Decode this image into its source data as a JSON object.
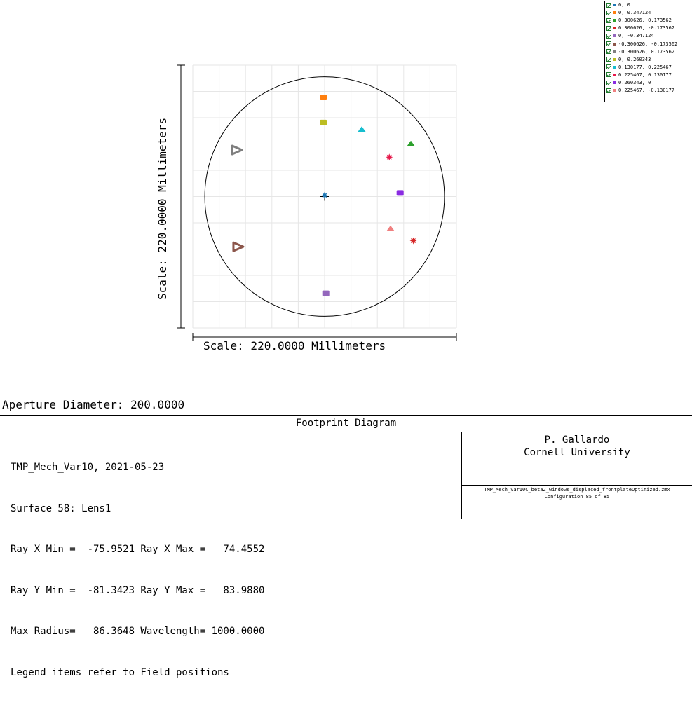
{
  "chart_data": {
    "type": "scatter",
    "xlabel": "Scale: 220.0000 Millimeters",
    "ylabel": "Scale: 220.0000 Millimeters",
    "xlim": [
      -110,
      110
    ],
    "ylim": [
      -110,
      110
    ],
    "grid": true,
    "aperture_circle_diameter": 200,
    "legend_position": "top-right",
    "series": [
      {
        "name": "0, 0",
        "color": "#1f77b4",
        "marker": "star",
        "x": 0,
        "y": 1
      },
      {
        "name": "0, 0.347124",
        "color": "#ff7f0e",
        "marker": "square",
        "x": -1,
        "y": 83
      },
      {
        "name": "0.300626, 0.173562",
        "color": "#2ca02c",
        "marker": "triangle",
        "x": 72,
        "y": 44
      },
      {
        "name": "0.300626, -0.173562",
        "color": "#d62728",
        "marker": "star",
        "x": 74,
        "y": -37
      },
      {
        "name": "0, -0.347124",
        "color": "#9467bd",
        "marker": "square",
        "x": 1,
        "y": -81
      },
      {
        "name": "-0.300626, -0.173562",
        "color": "#8c564b",
        "marker": "triangle",
        "x": -72,
        "y": -42
      },
      {
        "name": "-0.300626, 0.173562",
        "color": "#7f7f7f",
        "marker": "triangle",
        "x": -73,
        "y": 39
      },
      {
        "name": "0, 0.260343",
        "color": "#bcbd22",
        "marker": "square",
        "x": -1,
        "y": 62
      },
      {
        "name": "0.130177, 0.225467",
        "color": "#17becf",
        "marker": "triangle",
        "x": 31,
        "y": 56
      },
      {
        "name": "0.225467, 0.130177",
        "color": "#e6194b",
        "marker": "star",
        "x": 54,
        "y": 33
      },
      {
        "name": "0.260343, 0",
        "color": "#8a2be2",
        "marker": "square",
        "x": 63,
        "y": 3
      },
      {
        "name": "0.225467, -0.130177",
        "color": "#f08080",
        "marker": "triangle",
        "x": 55,
        "y": -27
      }
    ]
  },
  "aperture": "Aperture Diameter: 200.0000",
  "info": {
    "title": "Footprint Diagram",
    "lines": [
      "TMP_Mech_Var10, 2021-05-23",
      "Surface 58: Lens1",
      "Ray X Min =  -75.9521 Ray X Max =   74.4552",
      "Ray Y Min =  -81.3423 Ray Y Max =   83.9880",
      "Max Radius=   86.3648 Wavelength= 1000.0000",
      "Legend items refer to Field positions"
    ],
    "author": "P. Gallardo",
    "institution": "Cornell University",
    "file": "TMP_Mech_Var10C_beta2_windows_displaced_frontplateOptimized.zmx",
    "configuration": "Configuration 85 of 85"
  }
}
